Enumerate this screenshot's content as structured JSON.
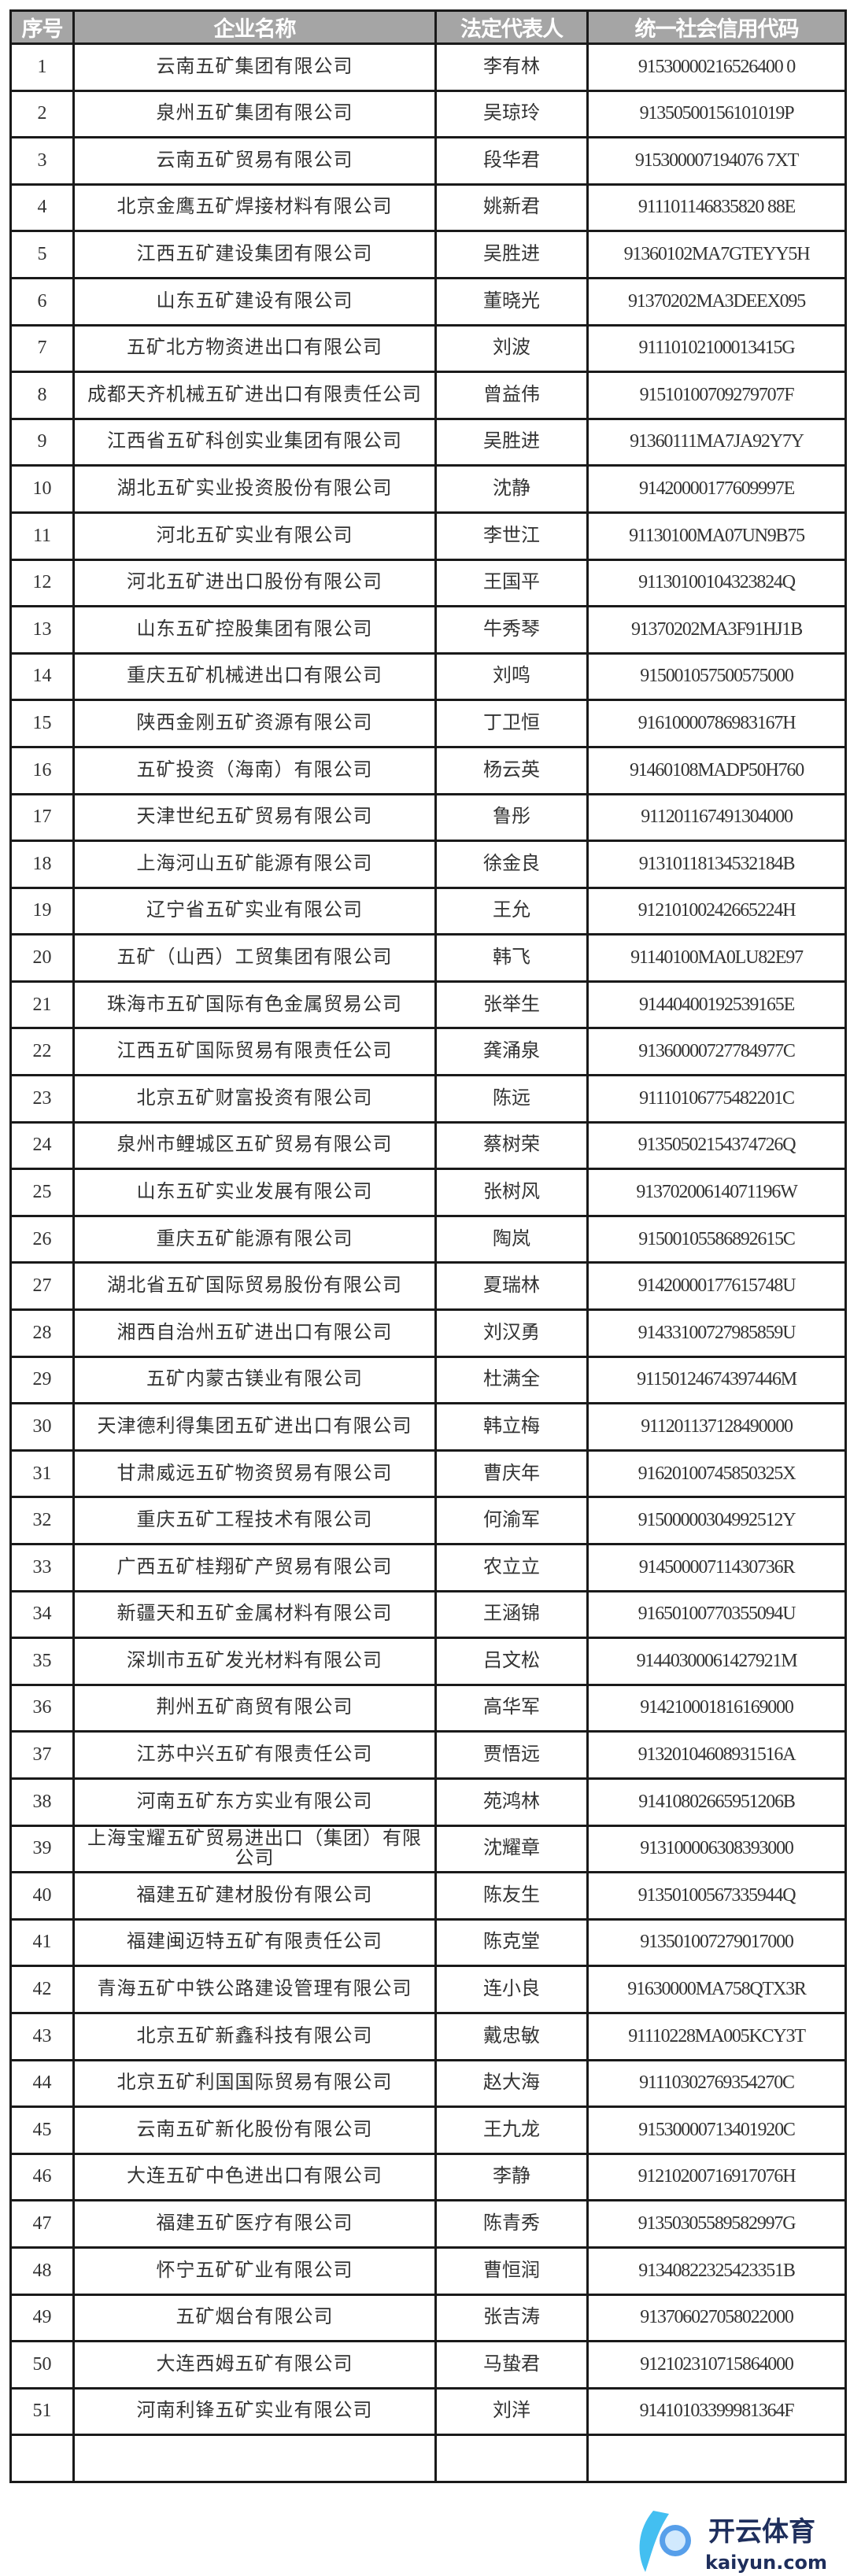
{
  "table": {
    "headers": [
      "序号",
      "企业名称",
      "法定代表人",
      "统一社会信用代码"
    ],
    "rows": [
      [
        "1",
        "云南五矿集团有限公司",
        "李有林",
        "91530000216526400 0"
      ],
      [
        "2",
        "泉州五矿集团有限公司",
        "吴琼玲",
        "91350500156101019P"
      ],
      [
        "3",
        "云南五矿贸易有限公司",
        "段华君",
        "915300007194076 7XT"
      ],
      [
        "4",
        "北京金鹰五矿焊接材料有限公司",
        "姚新君",
        "911101146835820 88E"
      ],
      [
        "5",
        "江西五矿建设集团有限公司",
        "吴胜进",
        "91360102MA7GTEYY5H"
      ],
      [
        "6",
        "山东五矿建设有限公司",
        "董晓光",
        "91370202MA3DEEX095"
      ],
      [
        "7",
        "五矿北方物资进出口有限公司",
        "刘波",
        "91110102100013415G"
      ],
      [
        "8",
        "成都天齐机械五矿进出口有限责任公司",
        "曾益伟",
        "91510100709279707F"
      ],
      [
        "9",
        "江西省五矿科创实业集团有限公司",
        "吴胜进",
        "91360111MA7JA92Y7Y"
      ],
      [
        "10",
        "湖北五矿实业投资股份有限公司",
        "沈静",
        "91420000177609997E"
      ],
      [
        "11",
        "河北五矿实业有限公司",
        "李世江",
        "91130100MA07UN9B75"
      ],
      [
        "12",
        "河北五矿进出口股份有限公司",
        "王国平",
        "91130100104323824Q"
      ],
      [
        "13",
        "山东五矿控股集团有限公司",
        "牛秀琴",
        "91370202MA3F91HJ1B"
      ],
      [
        "14",
        "重庆五矿机械进出口有限公司",
        "刘鸣",
        "915001057500575000"
      ],
      [
        "15",
        "陕西金刚五矿资源有限公司",
        "丁卫恒",
        "91610000786983167H"
      ],
      [
        "16",
        "五矿投资（海南）有限公司",
        "杨云英",
        "91460108MADP50H760"
      ],
      [
        "17",
        "天津世纪五矿贸易有限公司",
        "鲁彤",
        "911201167491304000"
      ],
      [
        "18",
        "上海河山五矿能源有限公司",
        "徐金良",
        "91310118134532184B"
      ],
      [
        "19",
        "辽宁省五矿实业有限公司",
        "王允",
        "91210100242665224H"
      ],
      [
        "20",
        "五矿（山西）工贸集团有限公司",
        "韩飞",
        "91140100MA0LU82E97"
      ],
      [
        "21",
        "珠海市五矿国际有色金属贸易公司",
        "张举生",
        "91440400192539165E"
      ],
      [
        "22",
        "江西五矿国际贸易有限责任公司",
        "龚涌泉",
        "91360000727784977C"
      ],
      [
        "23",
        "北京五矿财富投资有限公司",
        "陈远",
        "91110106775482201C"
      ],
      [
        "24",
        "泉州市鲤城区五矿贸易有限公司",
        "蔡树荣",
        "91350502154374726Q"
      ],
      [
        "25",
        "山东五矿实业发展有限公司",
        "张树风",
        "91370200614071196W"
      ],
      [
        "26",
        "重庆五矿能源有限公司",
        "陶岚",
        "91500105586892615C"
      ],
      [
        "27",
        "湖北省五矿国际贸易股份有限公司",
        "夏瑞林",
        "91420000177615748U"
      ],
      [
        "28",
        "湘西自治州五矿进出口有限公司",
        "刘汉勇",
        "91433100727985859U"
      ],
      [
        "29",
        "五矿内蒙古镁业有限公司",
        "杜满全",
        "91150124674397446M"
      ],
      [
        "30",
        "天津德利得集团五矿进出口有限公司",
        "韩立梅",
        "911201137128490000"
      ],
      [
        "31",
        "甘肃威远五矿物资贸易有限公司",
        "曹庆年",
        "91620100745850325X"
      ],
      [
        "32",
        "重庆五矿工程技术有限公司",
        "何渝军",
        "91500000304992512Y"
      ],
      [
        "33",
        "广西五矿桂翔矿产贸易有限公司",
        "农立立",
        "91450000711430736R"
      ],
      [
        "34",
        "新疆天和五矿金属材料有限公司",
        "王涵锦",
        "91650100770355094U"
      ],
      [
        "35",
        "深圳市五矿发光材料有限公司",
        "吕文松",
        "91440300061427921M"
      ],
      [
        "36",
        "荆州五矿商贸有限公司",
        "高华军",
        "914210001816169000"
      ],
      [
        "37",
        "江苏中兴五矿有限责任公司",
        "贾悟远",
        "91320104608931516A"
      ],
      [
        "38",
        "河南五矿东方实业有限公司",
        "苑鸿林",
        "91410802665951206B"
      ],
      [
        "39",
        "上海宝耀五矿贸易进出口（集团）有限公司",
        "沈耀章",
        "913100006308393000"
      ],
      [
        "40",
        "福建五矿建材股份有限公司",
        "陈友生",
        "91350100567335944Q"
      ],
      [
        "41",
        "福建闽迈特五矿有限责任公司",
        "陈克堂",
        "913501007279017000"
      ],
      [
        "42",
        "青海五矿中铁公路建设管理有限公司",
        "连小良",
        "91630000MA758QTX3R"
      ],
      [
        "43",
        "北京五矿新鑫科技有限公司",
        "戴忠敏",
        "91110228MA005KCY3T"
      ],
      [
        "44",
        "北京五矿利国国际贸易有限公司",
        "赵大海",
        "91110302769354270C"
      ],
      [
        "45",
        "云南五矿新化股份有限公司",
        "王九龙",
        "91530000713401920C"
      ],
      [
        "46",
        "大连五矿中色进出口有限公司",
        "李静",
        "91210200716917076H"
      ],
      [
        "47",
        "福建五矿医疗有限公司",
        "陈青秀",
        "91350305589582997G"
      ],
      [
        "48",
        "怀宁五矿矿业有限公司",
        "曹恒润",
        "91340822325423351B"
      ],
      [
        "49",
        "五矿烟台有限公司",
        "张吉涛",
        "913706027058022000"
      ],
      [
        "50",
        "大连西姆五矿有限公司",
        "马蛰君",
        "912102310715864000"
      ],
      [
        "51",
        "河南利锋五矿实业有限公司",
        "刘洋",
        "91410103399981364F"
      ],
      [
        "",
        "",
        "",
        ""
      ]
    ]
  },
  "watermark": {
    "brand": "开云体育",
    "domain": "kaiyun.com"
  },
  "colors": {
    "header_bg": "#a5a5a5",
    "header_text": "#ffffff",
    "border": "#1a1a1a",
    "cell_text": "#333333"
  }
}
